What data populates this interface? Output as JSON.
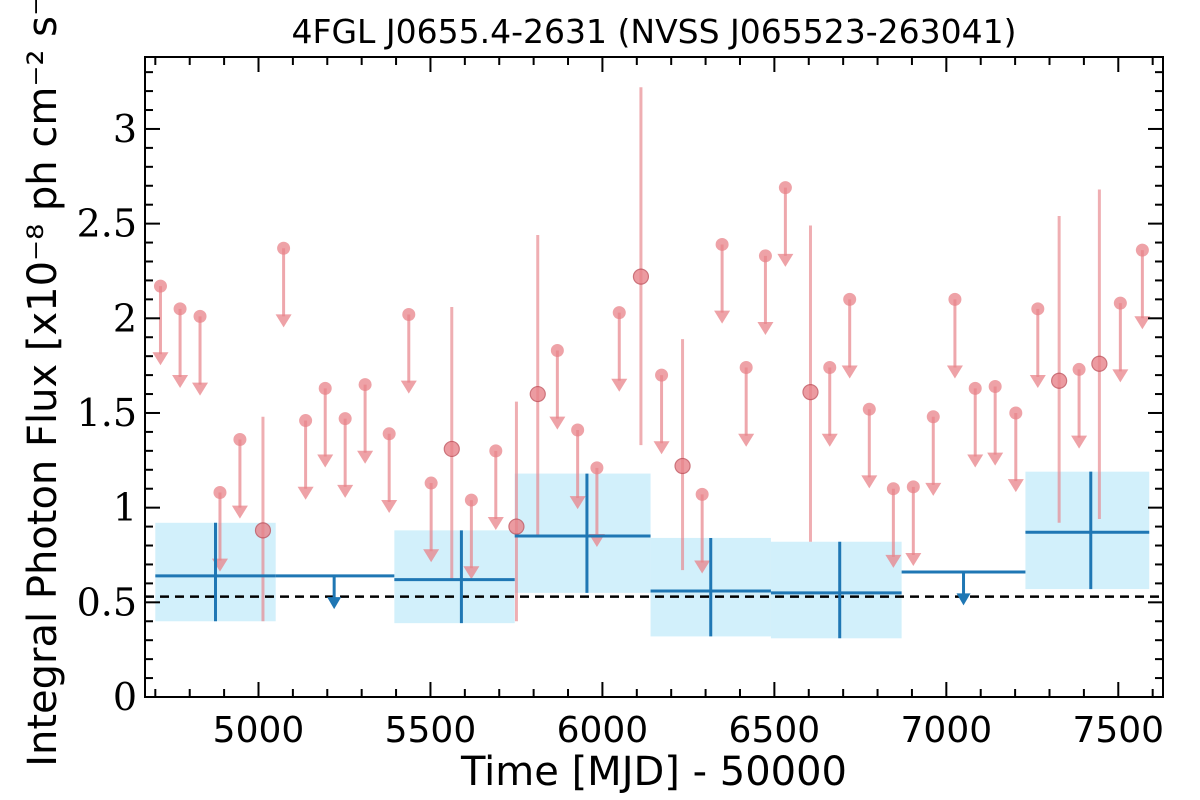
{
  "chart_data": {
    "type": "scatter",
    "title": "4FGL J0655.4-2631 (NVSS J065523-263041)",
    "xlabel": "Time [MJD] - 50000",
    "ylabel": "Integral Photon Flux [x10⁻⁸ ph cm⁻² s⁻¹]",
    "xlim": [
      4670,
      7630
    ],
    "ylim": [
      0,
      3.38
    ],
    "xticks": [
      "5000",
      "5500",
      "6000",
      "6500",
      "7000",
      "7500"
    ],
    "xtick_values": [
      5000,
      5500,
      6000,
      6500,
      7000,
      7500
    ],
    "yticks": [
      "0",
      "0.5",
      "1",
      "1.5",
      "2",
      "2.5",
      "3"
    ],
    "ytick_values": [
      0,
      0.5,
      1,
      1.5,
      2,
      2.5,
      3
    ],
    "reference_line": {
      "y": 0.53,
      "style": "dashed",
      "color": "#000000"
    },
    "colors": {
      "short_bins": "#e8838a",
      "long_bins": "#1f77b4",
      "long_bins_band": "#cdeefb"
    },
    "series": [
      {
        "key": "short_detections",
        "points": [
          {
            "x": 5013,
            "y": 0.88,
            "ylo": 0.4,
            "yhi": 1.48
          },
          {
            "x": 5562,
            "y": 1.31,
            "ylo": 0.62,
            "yhi": 2.06
          },
          {
            "x": 5750,
            "y": 0.9,
            "ylo": 0.4,
            "yhi": 1.56
          },
          {
            "x": 5812,
            "y": 1.6,
            "ylo": 0.85,
            "yhi": 2.44
          },
          {
            "x": 6112,
            "y": 2.22,
            "ylo": 1.33,
            "yhi": 3.22
          },
          {
            "x": 6233,
            "y": 1.22,
            "ylo": 0.67,
            "yhi": 1.89
          },
          {
            "x": 6605,
            "y": 1.61,
            "ylo": 0.82,
            "yhi": 2.49
          },
          {
            "x": 7328,
            "y": 1.67,
            "ylo": 0.92,
            "yhi": 2.54
          },
          {
            "x": 7445,
            "y": 1.76,
            "ylo": 0.94,
            "yhi": 2.68
          }
        ]
      },
      {
        "key": "short_upper_limits",
        "points": [
          {
            "x": 4715,
            "y": 2.17
          },
          {
            "x": 4772,
            "y": 2.05
          },
          {
            "x": 4830,
            "y": 2.01
          },
          {
            "x": 4888,
            "y": 1.08
          },
          {
            "x": 4946,
            "y": 1.36
          },
          {
            "x": 5073,
            "y": 2.37
          },
          {
            "x": 5137,
            "y": 1.46
          },
          {
            "x": 5194,
            "y": 1.63
          },
          {
            "x": 5252,
            "y": 1.47
          },
          {
            "x": 5310,
            "y": 1.65
          },
          {
            "x": 5380,
            "y": 1.39
          },
          {
            "x": 5437,
            "y": 2.02
          },
          {
            "x": 5502,
            "y": 1.13
          },
          {
            "x": 5619,
            "y": 1.04
          },
          {
            "x": 5690,
            "y": 1.3
          },
          {
            "x": 5869,
            "y": 1.83
          },
          {
            "x": 5928,
            "y": 1.41
          },
          {
            "x": 5984,
            "y": 1.21
          },
          {
            "x": 6049,
            "y": 2.03
          },
          {
            "x": 6172,
            "y": 1.7
          },
          {
            "x": 6290,
            "y": 1.07
          },
          {
            "x": 6348,
            "y": 2.39
          },
          {
            "x": 6418,
            "y": 1.74
          },
          {
            "x": 6474,
            "y": 2.33
          },
          {
            "x": 6532,
            "y": 2.69
          },
          {
            "x": 6661,
            "y": 1.74
          },
          {
            "x": 6719,
            "y": 2.1
          },
          {
            "x": 6776,
            "y": 1.52
          },
          {
            "x": 6846,
            "y": 1.1
          },
          {
            "x": 6904,
            "y": 1.11
          },
          {
            "x": 6962,
            "y": 1.48
          },
          {
            "x": 7025,
            "y": 2.1
          },
          {
            "x": 7084,
            "y": 1.63
          },
          {
            "x": 7142,
            "y": 1.64
          },
          {
            "x": 7202,
            "y": 1.5
          },
          {
            "x": 7266,
            "y": 2.05
          },
          {
            "x": 7386,
            "y": 1.73
          },
          {
            "x": 7506,
            "y": 2.08
          },
          {
            "x": 7570,
            "y": 2.36
          }
        ]
      },
      {
        "key": "long_detections",
        "bins": [
          {
            "x0": 4700,
            "x1": 5050,
            "xc": 4875,
            "y": 0.64,
            "ylo": 0.4,
            "yhi": 0.92
          },
          {
            "x0": 5395,
            "x1": 5745,
            "xc": 5590,
            "y": 0.62,
            "ylo": 0.39,
            "yhi": 0.88
          },
          {
            "x0": 5745,
            "x1": 6140,
            "xc": 5955,
            "y": 0.85,
            "ylo": 0.55,
            "yhi": 1.18
          },
          {
            "x0": 6140,
            "x1": 6490,
            "xc": 6315,
            "y": 0.56,
            "ylo": 0.32,
            "yhi": 0.84
          },
          {
            "x0": 6490,
            "x1": 6870,
            "xc": 6690,
            "y": 0.55,
            "ylo": 0.31,
            "yhi": 0.82
          },
          {
            "x0": 7230,
            "x1": 7590,
            "xc": 7420,
            "y": 0.87,
            "ylo": 0.57,
            "yhi": 1.19
          }
        ]
      },
      {
        "key": "long_upper_limits",
        "bins": [
          {
            "x0": 5050,
            "x1": 5395,
            "xc": 5220,
            "y": 0.64
          },
          {
            "x0": 6870,
            "x1": 7230,
            "xc": 7050,
            "y": 0.66
          }
        ]
      }
    ]
  }
}
